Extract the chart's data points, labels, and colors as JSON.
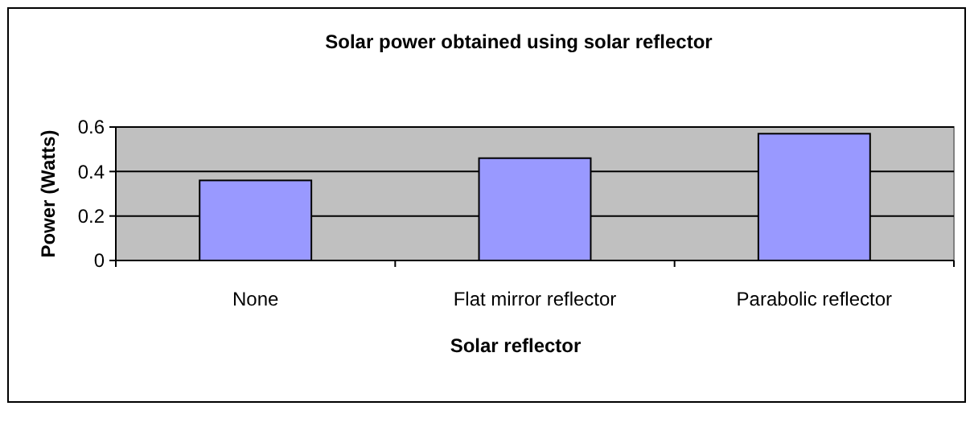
{
  "chart_data": {
    "type": "bar",
    "title": "Solar power obtained using solar reflector",
    "xlabel": "Solar reflector",
    "ylabel": "Power (Watts)",
    "categories": [
      "None",
      "Flat mirror reflector",
      "Parabolic reflector"
    ],
    "values": [
      0.36,
      0.46,
      0.57
    ],
    "color": "#9999ff",
    "ylim": [
      0,
      0.6
    ],
    "yticks": [
      0,
      {
        "value": 0.2,
        "label": "0.2"
      },
      {
        "value": 0.4,
        "label": "0.4"
      },
      {
        "value": 0.6,
        "label": "0.6"
      }
    ],
    "grid": "y"
  }
}
